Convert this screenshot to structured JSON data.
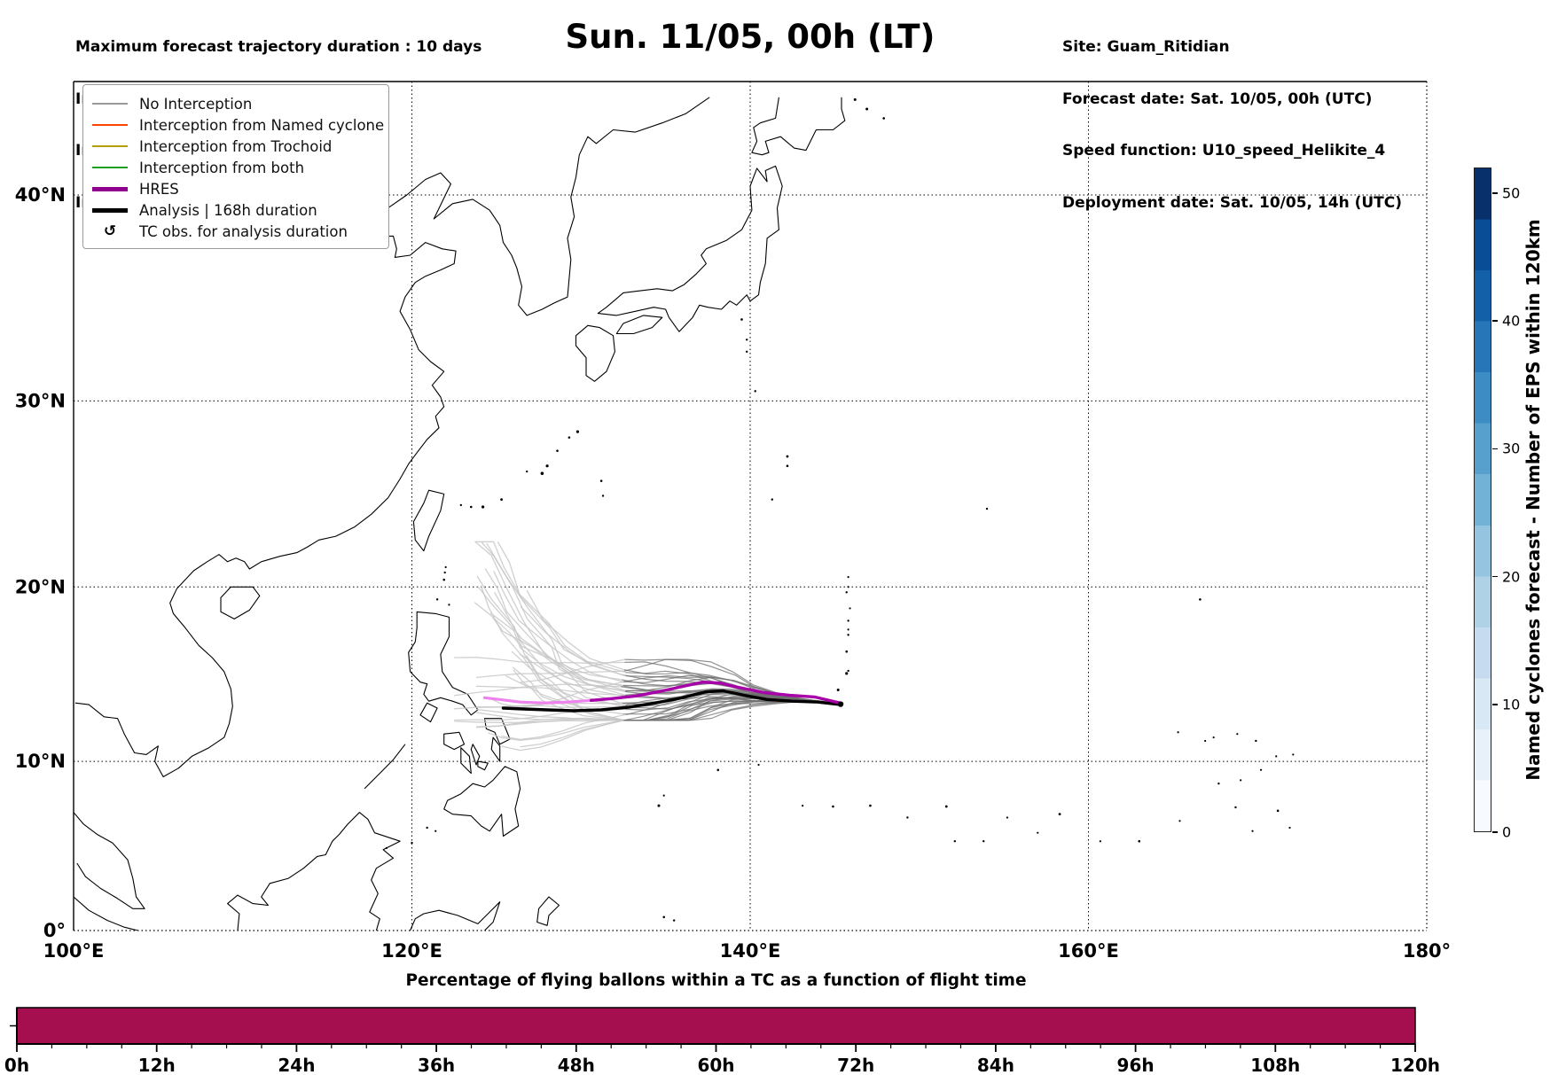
{
  "figure": {
    "info_left": {
      "line1": "Maximum forecast trajectory duration : 10 days",
      "line2": "Intercept distance: 300km",
      "line3": "Intercept RW2 (EPS):  30km/h2",
      "line4": "Intercept RW2 (HRES): 30km/h2"
    },
    "title": "Sun. 11/05, 00h (LT)",
    "info_right": {
      "line1": "Site: Guam_Ritidian",
      "line2": "Forecast date: Sat. 10/05, 00h (UTC)",
      "line3": "Speed function: U10_speed_Helikite_4",
      "line4": "Deployment date: Sat. 10/05, 14h (UTC)"
    }
  },
  "map": {
    "legend": {
      "items": [
        {
          "label": "No Interception",
          "color": "#999999",
          "lw": 2,
          "type": "line"
        },
        {
          "label": "Interception from Named cyclone",
          "color": "#ff4500",
          "lw": 2,
          "type": "line"
        },
        {
          "label": "Interception from Trochoid",
          "color": "#b3a000",
          "lw": 2,
          "type": "line"
        },
        {
          "label": "Interception from both",
          "color": "#1e9e1e",
          "lw": 2,
          "type": "line"
        },
        {
          "label": "HRES",
          "color": "#8f008f",
          "lw": 5,
          "type": "line"
        },
        {
          "label": "Analysis | 168h duration",
          "color": "#000000",
          "lw": 5,
          "type": "line"
        },
        {
          "label": "TC obs. for analysis duration",
          "symbol": "↺",
          "type": "symbol"
        }
      ]
    },
    "x_tick_labels": [
      "100°E",
      "120°E",
      "140°E",
      "160°E",
      "180°"
    ],
    "x_tick_lons": [
      100,
      120,
      140,
      160,
      180
    ],
    "y_tick_labels": [
      "0°",
      "10°N",
      "20°N",
      "30°N",
      "40°N"
    ],
    "y_tick_lats": [
      0,
      10,
      20,
      30,
      40
    ]
  },
  "colorbar": {
    "label": "Named cyclones forecast - Number of EPS within 120km",
    "ticks": [
      0,
      10,
      20,
      30,
      40,
      50
    ],
    "vmin": 0,
    "vmax": 52,
    "colors": [
      "#f7fbff",
      "#e8f1fa",
      "#d9e8f5",
      "#c6dbef",
      "#b0d2e7",
      "#94c4df",
      "#72b2d7",
      "#57a0ce",
      "#3d8dc4",
      "#2676b8",
      "#1460a8",
      "#084d96",
      "#08306b"
    ]
  },
  "chart_data": [
    {
      "type": "line",
      "name": "trajectory-map",
      "projection": "mercator",
      "lon_range": [
        100,
        180
      ],
      "lat_range": [
        0,
        44.3
      ],
      "grid": "dotted",
      "start_point": [
        145.35,
        13.33
      ],
      "series": [
        {
          "name": "HRES",
          "color": "#a800a8",
          "points": [
            [
              145.3,
              13.4
            ],
            [
              143.8,
              13.75
            ],
            [
              142.3,
              13.85
            ],
            [
              140.8,
              14.0
            ],
            [
              139.3,
              14.3
            ],
            [
              138.2,
              14.55
            ],
            [
              137.2,
              14.6
            ],
            [
              136.0,
              14.35
            ],
            [
              134.6,
              14.05
            ],
            [
              133.2,
              13.8
            ],
            [
              131.8,
              13.65
            ],
            [
              130.6,
              13.55
            ]
          ]
        },
        {
          "name": "HRES beyond analysis duration",
          "color": "#ee82ee",
          "points": [
            [
              130.6,
              13.55
            ],
            [
              129.2,
              13.45
            ],
            [
              127.8,
              13.4
            ],
            [
              126.4,
              13.45
            ],
            [
              125.2,
              13.6
            ],
            [
              124.3,
              13.7
            ]
          ]
        },
        {
          "name": "Analysis | 168h duration",
          "color": "#000000",
          "points": [
            [
              145.35,
              13.3
            ],
            [
              144.0,
              13.45
            ],
            [
              142.5,
              13.5
            ],
            [
              141.0,
              13.6
            ],
            [
              139.6,
              13.85
            ],
            [
              138.4,
              14.1
            ],
            [
              137.4,
              14.05
            ],
            [
              136.0,
              13.7
            ],
            [
              134.4,
              13.4
            ],
            [
              132.8,
              13.15
            ],
            [
              131.2,
              13.0
            ],
            [
              129.6,
              12.95
            ],
            [
              128.0,
              13.0
            ],
            [
              126.6,
              13.05
            ],
            [
              125.4,
              13.1
            ]
          ]
        },
        {
          "name": "EPS ensemble (No Interception)",
          "color_east": "#6f6f6f",
          "color_west": "#c8c8c8",
          "count": 40,
          "start": [
            145.35,
            13.33
          ],
          "lon_end_range": [
            120.9,
            126.5
          ],
          "lat_end_range": [
            11.2,
            22.5
          ]
        }
      ]
    },
    {
      "type": "bar",
      "name": "balloon-tc-percentage",
      "title": "Percentage of flying ballons within a TC as a function of flight time",
      "x_tick_labels": [
        "0h",
        "12h",
        "24h",
        "36h",
        "48h",
        "60h",
        "72h",
        "84h",
        "96h",
        "108h",
        "120h"
      ],
      "x_range_hours": [
        0,
        120
      ],
      "values_percent": [
        100,
        100,
        100,
        100,
        100,
        100,
        100,
        100,
        100,
        100,
        100
      ],
      "bar_color": "#a50f4f"
    }
  ]
}
